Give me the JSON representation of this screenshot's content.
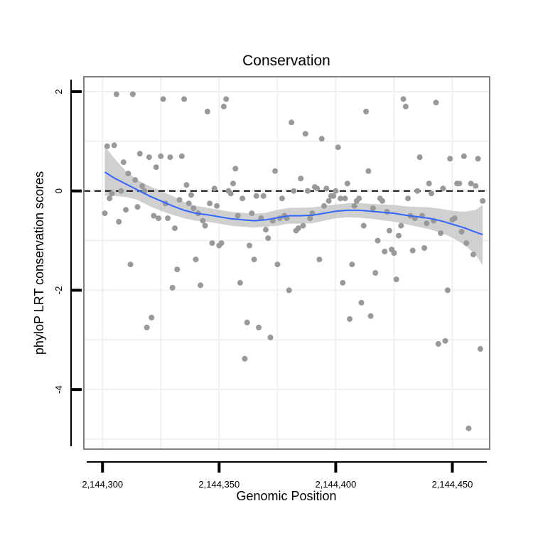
{
  "chart_data": {
    "type": "scatter",
    "title": "Conservation",
    "xlabel": "Genomic Position",
    "ylabel": "phyloP LRT conservation scores",
    "xlim": [
      2144292,
      2144466
    ],
    "ylim": [
      -5.2,
      2.3
    ],
    "x_ticks": [
      2144300,
      2144350,
      2144400,
      2144450
    ],
    "x_tick_labels": [
      "2,144,300",
      "2,144,350",
      "2,144,400",
      "2,144,450"
    ],
    "y_ticks": [
      2,
      0,
      -2,
      -4
    ],
    "y_tick_labels": [
      "2",
      "0",
      "-2",
      "-4"
    ],
    "reference_line_y": 0,
    "grid": true,
    "colors": {
      "points": "#999999",
      "smooth_line": "#3366ff",
      "confidence_band": "#c8c8c8",
      "reference_line": "#000000",
      "panel_border": "#7f7f7f",
      "grid": "#f0f0f0"
    },
    "points": [
      [
        2144301,
        -0.45
      ],
      [
        2144302,
        0.9
      ],
      [
        2144303,
        -0.15
      ],
      [
        2144304,
        -0.05
      ],
      [
        2144305,
        0.92
      ],
      [
        2144306,
        1.95
      ],
      [
        2144307,
        -0.62
      ],
      [
        2144308,
        0.0
      ],
      [
        2144309,
        0.58
      ],
      [
        2144310,
        -0.38
      ],
      [
        2144311,
        0.35
      ],
      [
        2144312,
        -1.48
      ],
      [
        2144313,
        1.95
      ],
      [
        2144314,
        0.22
      ],
      [
        2144315,
        -0.32
      ],
      [
        2144316,
        0.75
      ],
      [
        2144317,
        0.1
      ],
      [
        2144318,
        0.0
      ],
      [
        2144319,
        -2.75
      ],
      [
        2144320,
        0.68
      ],
      [
        2144321,
        -2.55
      ],
      [
        2144322,
        -0.5
      ],
      [
        2144323,
        0.48
      ],
      [
        2144324,
        -0.55
      ],
      [
        2144325,
        0.7
      ],
      [
        2144326,
        1.85
      ],
      [
        2144327,
        -0.25
      ],
      [
        2144328,
        -0.55
      ],
      [
        2144329,
        0.68
      ],
      [
        2144330,
        -1.95
      ],
      [
        2144331,
        -0.75
      ],
      [
        2144332,
        -1.58
      ],
      [
        2144333,
        -0.18
      ],
      [
        2144334,
        0.7
      ],
      [
        2144335,
        1.85
      ],
      [
        2144336,
        0.12
      ],
      [
        2144337,
        -0.25
      ],
      [
        2144338,
        -0.08
      ],
      [
        2144339,
        -0.35
      ],
      [
        2144340,
        -1.38
      ],
      [
        2144341,
        -0.45
      ],
      [
        2144342,
        -1.9
      ],
      [
        2144343,
        -0.6
      ],
      [
        2144344,
        -0.7
      ],
      [
        2144345,
        1.6
      ],
      [
        2144346,
        -0.25
      ],
      [
        2144347,
        -1.05
      ],
      [
        2144348,
        0.05
      ],
      [
        2144349,
        -0.3
      ],
      [
        2144350,
        -1.1
      ],
      [
        2144351,
        -1.05
      ],
      [
        2144352,
        1.7
      ],
      [
        2144353,
        1.85
      ],
      [
        2144354,
        0.0
      ],
      [
        2144355,
        -0.05
      ],
      [
        2144356,
        0.15
      ],
      [
        2144357,
        0.45
      ],
      [
        2144358,
        -0.5
      ],
      [
        2144359,
        -1.85
      ],
      [
        2144360,
        -0.15
      ],
      [
        2144361,
        -3.38
      ],
      [
        2144362,
        -2.65
      ],
      [
        2144363,
        -1.1
      ],
      [
        2144364,
        -0.45
      ],
      [
        2144365,
        -1.38
      ],
      [
        2144366,
        -0.1
      ],
      [
        2144367,
        -2.75
      ],
      [
        2144368,
        -0.55
      ],
      [
        2144369,
        -0.1
      ],
      [
        2144370,
        -0.78
      ],
      [
        2144371,
        -0.95
      ],
      [
        2144372,
        -2.95
      ],
      [
        2144373,
        -0.6
      ],
      [
        2144374,
        0.4
      ],
      [
        2144375,
        -1.48
      ],
      [
        2144376,
        -0.55
      ],
      [
        2144377,
        -0.15
      ],
      [
        2144378,
        -0.5
      ],
      [
        2144379,
        -0.55
      ],
      [
        2144380,
        -2.0
      ],
      [
        2144381,
        1.38
      ],
      [
        2144382,
        0.0
      ],
      [
        2144383,
        -0.8
      ],
      [
        2144384,
        -0.75
      ],
      [
        2144385,
        0.25
      ],
      [
        2144386,
        -0.7
      ],
      [
        2144387,
        1.15
      ],
      [
        2144388,
        0.0
      ],
      [
        2144389,
        -0.55
      ],
      [
        2144390,
        -0.45
      ],
      [
        2144391,
        0.08
      ],
      [
        2144392,
        0.05
      ],
      [
        2144393,
        -1.38
      ],
      [
        2144394,
        1.05
      ],
      [
        2144395,
        -0.3
      ],
      [
        2144396,
        0.05
      ],
      [
        2144397,
        -0.2
      ],
      [
        2144398,
        -0.1
      ],
      [
        2144399,
        -0.1
      ],
      [
        2144400,
        0.0
      ],
      [
        2144401,
        0.88
      ],
      [
        2144402,
        -0.15
      ],
      [
        2144403,
        -1.85
      ],
      [
        2144404,
        -0.15
      ],
      [
        2144405,
        0.15
      ],
      [
        2144406,
        -2.58
      ],
      [
        2144407,
        -1.48
      ],
      [
        2144408,
        -0.3
      ],
      [
        2144409,
        -0.2
      ],
      [
        2144410,
        -0.15
      ],
      [
        2144411,
        -2.25
      ],
      [
        2144412,
        -0.7
      ],
      [
        2144413,
        1.6
      ],
      [
        2144414,
        0.4
      ],
      [
        2144415,
        -2.52
      ],
      [
        2144416,
        -0.35
      ],
      [
        2144417,
        -1.65
      ],
      [
        2144418,
        -1.0
      ],
      [
        2144419,
        -0.15
      ],
      [
        2144420,
        -0.2
      ],
      [
        2144421,
        -1.22
      ],
      [
        2144422,
        -0.42
      ],
      [
        2144423,
        -0.8
      ],
      [
        2144424,
        -1.18
      ],
      [
        2144425,
        -1.25
      ],
      [
        2144426,
        -1.78
      ],
      [
        2144427,
        -0.9
      ],
      [
        2144428,
        -0.7
      ],
      [
        2144429,
        1.85
      ],
      [
        2144430,
        1.7
      ],
      [
        2144431,
        -0.15
      ],
      [
        2144432,
        -0.5
      ],
      [
        2144433,
        -1.2
      ],
      [
        2144434,
        -0.55
      ],
      [
        2144435,
        0.0
      ],
      [
        2144436,
        0.68
      ],
      [
        2144437,
        -0.5
      ],
      [
        2144438,
        -1.15
      ],
      [
        2144439,
        -0.65
      ],
      [
        2144440,
        0.15
      ],
      [
        2144441,
        -0.05
      ],
      [
        2144442,
        -0.6
      ],
      [
        2144443,
        1.78
      ],
      [
        2144444,
        -3.08
      ],
      [
        2144445,
        -0.85
      ],
      [
        2144446,
        0.05
      ],
      [
        2144447,
        -3.02
      ],
      [
        2144448,
        -2.0
      ],
      [
        2144449,
        0.65
      ],
      [
        2144450,
        -0.58
      ],
      [
        2144451,
        -0.55
      ],
      [
        2144452,
        0.15
      ],
      [
        2144453,
        0.15
      ],
      [
        2144454,
        -0.82
      ],
      [
        2144455,
        0.7
      ],
      [
        2144456,
        -1.05
      ],
      [
        2144457,
        -4.78
      ],
      [
        2144458,
        0.15
      ],
      [
        2144459,
        -1.28
      ],
      [
        2144460,
        0.1
      ],
      [
        2144461,
        0.65
      ],
      [
        2144462,
        -3.18
      ],
      [
        2144463,
        -0.2
      ]
    ],
    "smooth_fit": {
      "x": [
        2144301,
        2144305,
        2144310,
        2144315,
        2144320,
        2144325,
        2144330,
        2144335,
        2144340,
        2144345,
        2144350,
        2144355,
        2144360,
        2144365,
        2144370,
        2144375,
        2144380,
        2144385,
        2144390,
        2144395,
        2144400,
        2144405,
        2144410,
        2144415,
        2144420,
        2144425,
        2144430,
        2144435,
        2144440,
        2144445,
        2144450,
        2144455,
        2144460,
        2144463
      ],
      "y": [
        0.38,
        0.26,
        0.14,
        0.02,
        -0.1,
        -0.2,
        -0.3,
        -0.39,
        -0.45,
        -0.48,
        -0.52,
        -0.56,
        -0.58,
        -0.6,
        -0.58,
        -0.54,
        -0.5,
        -0.5,
        -0.49,
        -0.45,
        -0.41,
        -0.39,
        -0.39,
        -0.41,
        -0.43,
        -0.45,
        -0.49,
        -0.52,
        -0.55,
        -0.6,
        -0.67,
        -0.74,
        -0.83,
        -0.88
      ],
      "lower": [
        -0.1,
        -0.1,
        -0.12,
        -0.18,
        -0.3,
        -0.4,
        -0.48,
        -0.55,
        -0.6,
        -0.62,
        -0.66,
        -0.7,
        -0.72,
        -0.74,
        -0.72,
        -0.7,
        -0.66,
        -0.66,
        -0.65,
        -0.6,
        -0.55,
        -0.53,
        -0.54,
        -0.56,
        -0.59,
        -0.62,
        -0.67,
        -0.72,
        -0.77,
        -0.84,
        -0.94,
        -1.08,
        -1.28,
        -1.5
      ],
      "upper": [
        0.9,
        0.66,
        0.4,
        0.22,
        0.1,
        0.0,
        -0.1,
        -0.22,
        -0.3,
        -0.34,
        -0.38,
        -0.42,
        -0.44,
        -0.46,
        -0.44,
        -0.38,
        -0.34,
        -0.34,
        -0.33,
        -0.3,
        -0.27,
        -0.25,
        -0.24,
        -0.26,
        -0.27,
        -0.28,
        -0.31,
        -0.32,
        -0.33,
        -0.36,
        -0.4,
        -0.42,
        -0.38,
        -0.28
      ]
    }
  }
}
